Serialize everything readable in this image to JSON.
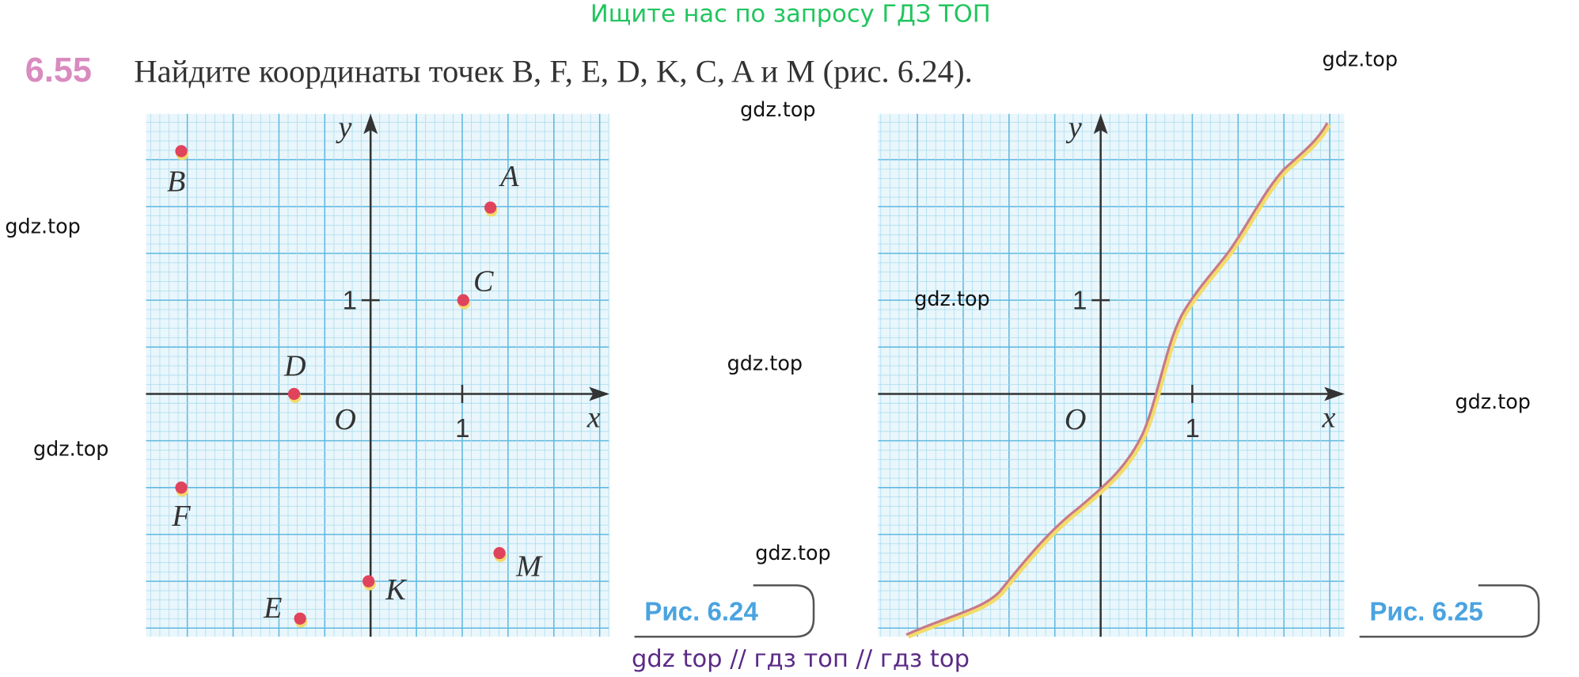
{
  "header": {
    "banner": "Ищите нас по запросу ГДЗ ТОП"
  },
  "problem": {
    "number": "6.55",
    "text": "Найдите координаты точек B, F, E, D, K, C, A и M (рис. 6.24)."
  },
  "figures": [
    {
      "caption": "Рис.  6.24",
      "axis_labels": {
        "x": "x",
        "y": "y",
        "origin": "O",
        "x_unit": "1",
        "y_unit": "1"
      },
      "points": [
        {
          "label": "B"
        },
        {
          "label": "A"
        },
        {
          "label": "C"
        },
        {
          "label": "D"
        },
        {
          "label": "F"
        },
        {
          "label": "M"
        },
        {
          "label": "K"
        },
        {
          "label": "E"
        }
      ]
    },
    {
      "caption": "Рис.  6.25",
      "axis_labels": {
        "x": "x",
        "y": "y",
        "origin": "O",
        "x_unit": "1",
        "y_unit": "1"
      }
    }
  ],
  "watermarks": [
    "gdz.top",
    "gdz.top",
    "gdz.top",
    "gdz.top",
    "gdz.top",
    "gdz.top",
    "gdz.top",
    "gdz.top"
  ],
  "footer": "gdz top  //  гдз топ  //  гдз top"
}
